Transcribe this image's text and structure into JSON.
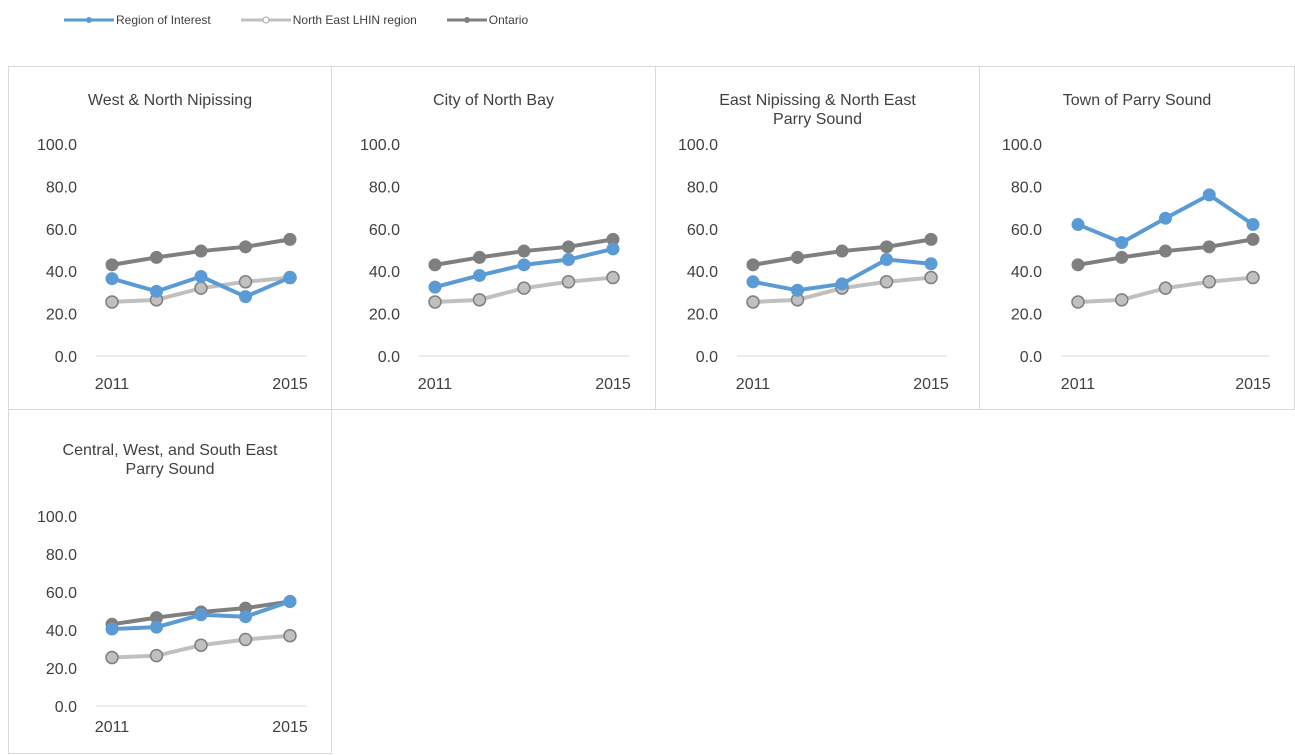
{
  "legend": [
    {
      "name": "Region of Interest",
      "color": "#5b9bd5"
    },
    {
      "name": "North East LHIN region",
      "color": "#c0c0c0"
    },
    {
      "name": "Ontario",
      "color": "#7f7f7f"
    }
  ],
  "chart_data": [
    {
      "type": "line",
      "title": "West & North Nipissing",
      "x": [
        2011,
        2012,
        2013,
        2014,
        2015
      ],
      "x_tick_labels": [
        "2011",
        "2015"
      ],
      "y_tick_labels": [
        "100.0",
        "80.0",
        "60.0",
        "40.0",
        "20.0",
        "0.0"
      ],
      "ylim": [
        0,
        100
      ],
      "grid": false,
      "series": [
        {
          "name": "Region of Interest",
          "values": [
            36.5,
            30.5,
            37.5,
            28.0,
            37.0
          ]
        },
        {
          "name": "North East LHIN region",
          "values": [
            25.5,
            26.5,
            32.0,
            35.0,
            37.0
          ]
        },
        {
          "name": "Ontario",
          "values": [
            43.0,
            46.5,
            49.5,
            51.5,
            55.0
          ]
        }
      ]
    },
    {
      "type": "line",
      "title": "City of North Bay",
      "x": [
        2011,
        2012,
        2013,
        2014,
        2015
      ],
      "x_tick_labels": [
        "2011",
        "2015"
      ],
      "y_tick_labels": [
        "100.0",
        "80.0",
        "60.0",
        "40.0",
        "20.0",
        "0.0"
      ],
      "ylim": [
        0,
        100
      ],
      "grid": false,
      "series": [
        {
          "name": "Region of Interest",
          "values": [
            32.5,
            38.0,
            43.0,
            45.5,
            50.5
          ]
        },
        {
          "name": "North East LHIN region",
          "values": [
            25.5,
            26.5,
            32.0,
            35.0,
            37.0
          ]
        },
        {
          "name": "Ontario",
          "values": [
            43.0,
            46.5,
            49.5,
            51.5,
            55.0
          ]
        }
      ]
    },
    {
      "type": "line",
      "title": "East Nipissing & North East Parry Sound",
      "x": [
        2011,
        2012,
        2013,
        2014,
        2015
      ],
      "x_tick_labels": [
        "2011",
        "2015"
      ],
      "y_tick_labels": [
        "100.0",
        "80.0",
        "60.0",
        "40.0",
        "20.0",
        "0.0"
      ],
      "ylim": [
        0,
        100
      ],
      "grid": false,
      "series": [
        {
          "name": "Region of Interest",
          "values": [
            35.0,
            31.0,
            34.0,
            45.5,
            43.5
          ]
        },
        {
          "name": "North East LHIN region",
          "values": [
            25.5,
            26.5,
            32.0,
            35.0,
            37.0
          ]
        },
        {
          "name": "Ontario",
          "values": [
            43.0,
            46.5,
            49.5,
            51.5,
            55.0
          ]
        }
      ]
    },
    {
      "type": "line",
      "title": "Town of Parry Sound",
      "x": [
        2011,
        2012,
        2013,
        2014,
        2015
      ],
      "x_tick_labels": [
        "2011",
        "2015"
      ],
      "y_tick_labels": [
        "100.0",
        "80.0",
        "60.0",
        "40.0",
        "20.0",
        "0.0"
      ],
      "ylim": [
        0,
        100
      ],
      "grid": false,
      "series": [
        {
          "name": "Region of Interest",
          "values": [
            62.0,
            53.5,
            65.0,
            76.0,
            62.0
          ]
        },
        {
          "name": "North East LHIN region",
          "values": [
            25.5,
            26.5,
            32.0,
            35.0,
            37.0
          ]
        },
        {
          "name": "Ontario",
          "values": [
            43.0,
            46.5,
            49.5,
            51.5,
            55.0
          ]
        }
      ]
    },
    {
      "type": "line",
      "title": "Central, West, and South East Parry Sound",
      "x": [
        2011,
        2012,
        2013,
        2014,
        2015
      ],
      "x_tick_labels": [
        "2011",
        "2015"
      ],
      "y_tick_labels": [
        "100.0",
        "80.0",
        "60.0",
        "40.0",
        "20.0",
        "0.0"
      ],
      "ylim": [
        0,
        100
      ],
      "grid": false,
      "series": [
        {
          "name": "Region of Interest",
          "values": [
            40.5,
            41.5,
            48.0,
            47.0,
            55.0
          ]
        },
        {
          "name": "North East LHIN region",
          "values": [
            25.5,
            26.5,
            32.0,
            35.0,
            37.0
          ]
        },
        {
          "name": "Ontario",
          "values": [
            43.0,
            46.5,
            49.5,
            51.5,
            55.0
          ]
        }
      ]
    }
  ]
}
